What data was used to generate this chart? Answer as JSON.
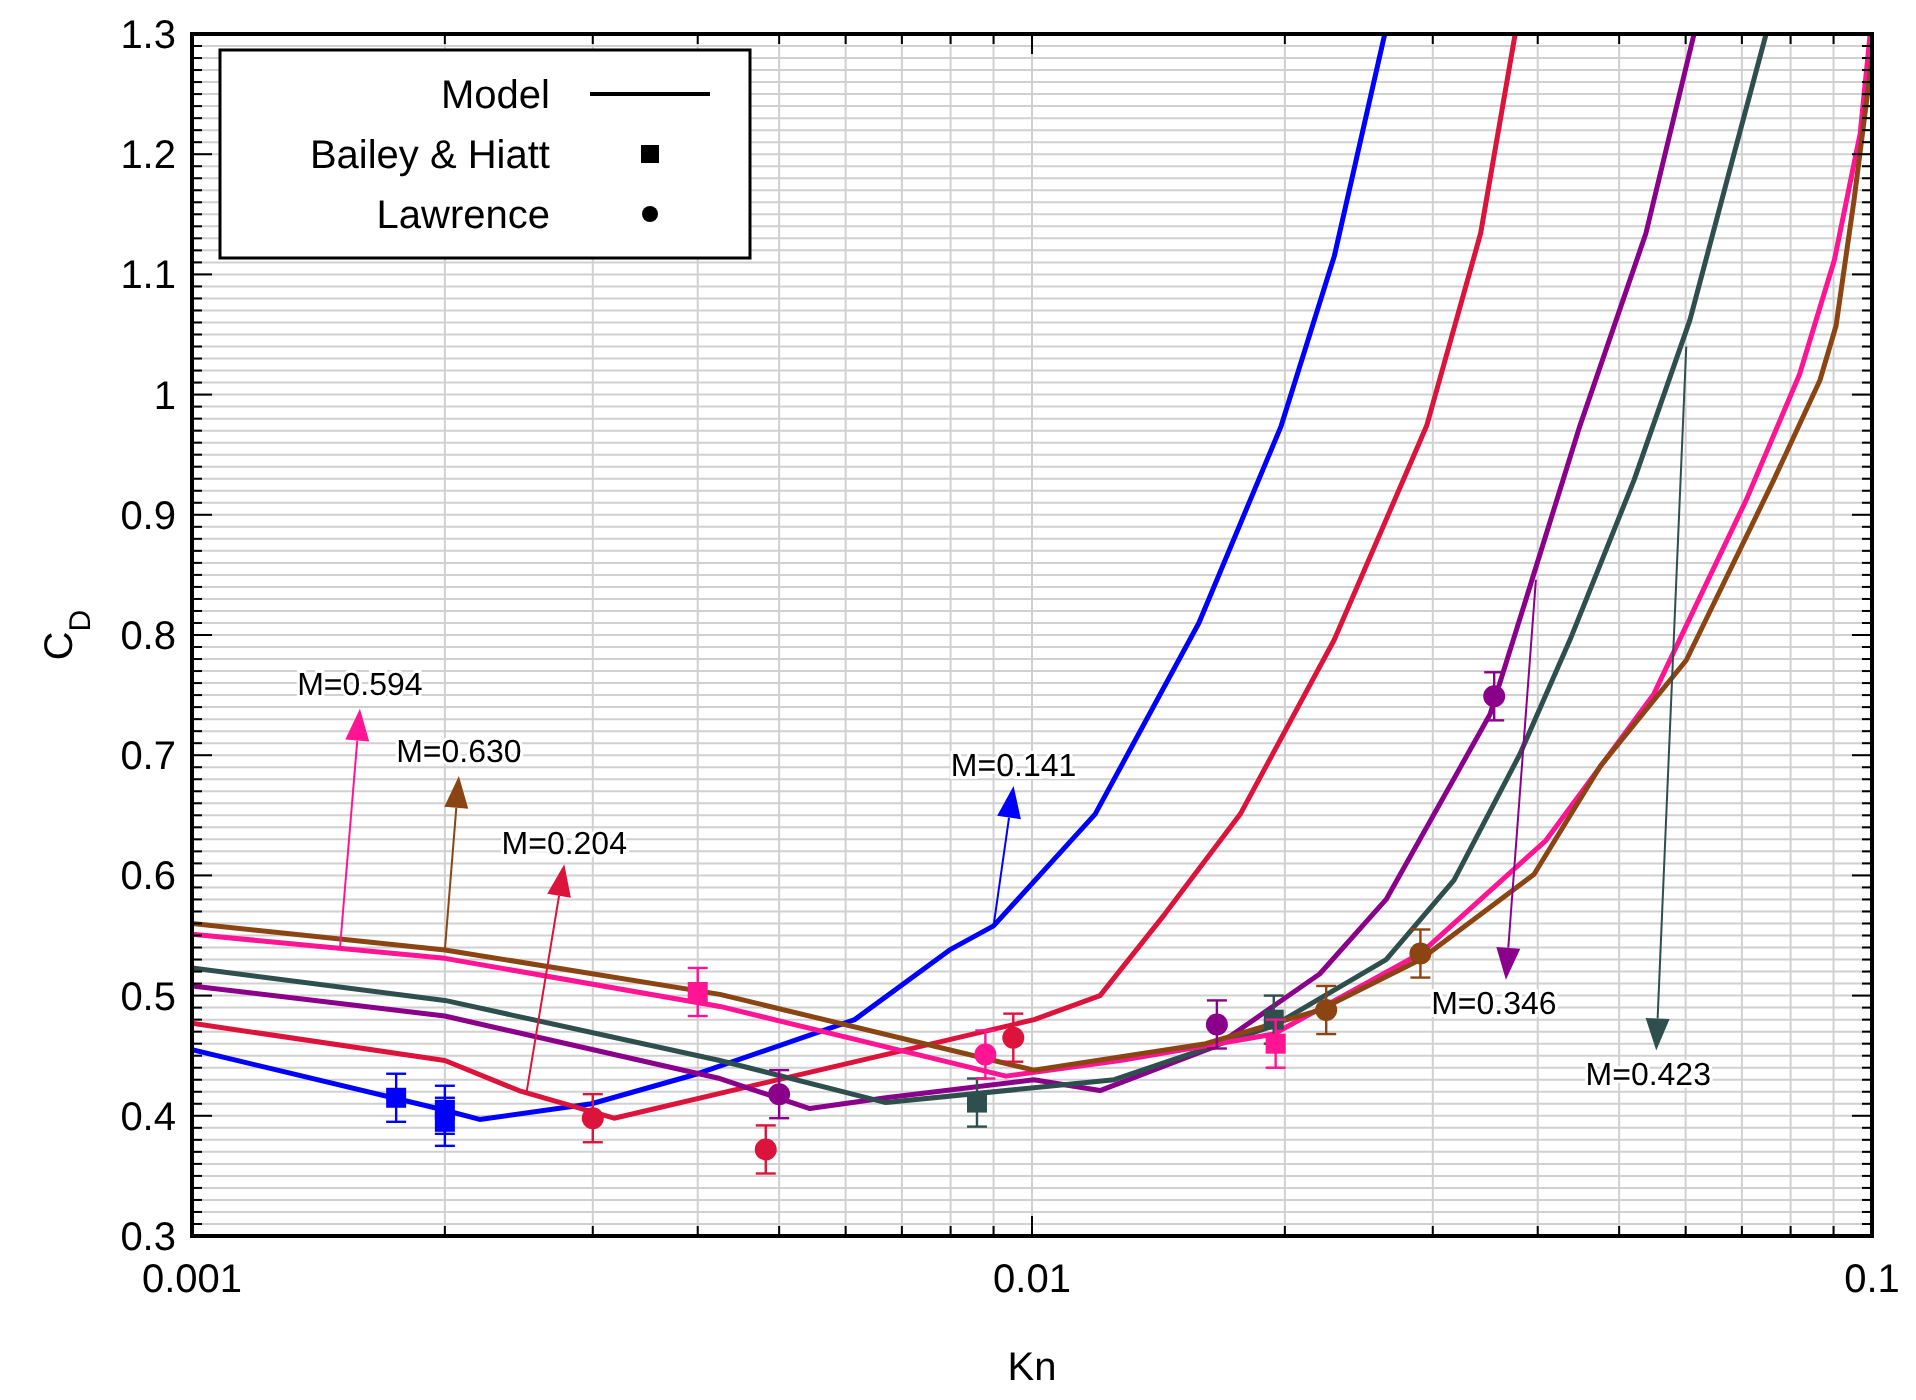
{
  "chart_data": {
    "type": "line",
    "xlabel": "Kn",
    "ylabel": "C$_{D}$",
    "log": "x",
    "xlim": [
      0.001,
      0.1
    ],
    "xticks": [
      0.001,
      0.01,
      0.1
    ],
    "ylim": [
      0.3,
      1.3
    ],
    "yticks": [
      0.3,
      0.4,
      0.5,
      0.6,
      0.7,
      0.8,
      0.9,
      1,
      1.1,
      1.2,
      1.3
    ],
    "grid": true,
    "series": [
      {
        "color": "#0000ff",
        "x": [
          0.001,
          0.00199,
          0.0022,
          0.00299,
          0.004,
          0.00615,
          0.00798,
          0.009,
          0.01189,
          0.0158,
          0.0198,
          0.0229,
          0.0263
        ],
        "values": [
          0.455,
          0.405,
          0.397,
          0.41,
          0.435,
          0.48,
          0.538,
          0.558,
          0.651,
          0.81,
          0.974,
          1.115,
          1.3
        ]
      },
      {
        "color": "#dc143c",
        "x": [
          0.001,
          0.002,
          0.00245,
          0.00318,
          0.00793,
          0.01006,
          0.01205,
          0.0144,
          0.0177,
          0.0229,
          0.0295,
          0.0342,
          0.0376
        ],
        "values": [
          0.477,
          0.446,
          0.421,
          0.398,
          0.463,
          0.48,
          0.5,
          0.568,
          0.651,
          0.796,
          0.974,
          1.134,
          1.3
        ]
      },
      {
        "color": "#8b008b",
        "x": [
          0.001,
          0.002,
          0.00425,
          0.00544,
          0.0067,
          0.01005,
          0.01205,
          0.01656,
          0.022,
          0.0264,
          0.0351,
          0.0387,
          0.0449,
          0.0538,
          0.0614
        ],
        "values": [
          0.508,
          0.483,
          0.431,
          0.406,
          0.415,
          0.43,
          0.421,
          0.458,
          0.518,
          0.58,
          0.734,
          0.829,
          0.974,
          1.134,
          1.3
        ]
      },
      {
        "color": "#2f4f4f",
        "x": [
          0.001,
          0.002,
          0.00425,
          0.0067,
          0.01253,
          0.0194,
          0.0264,
          0.0318,
          0.0381,
          0.0437,
          0.0521,
          0.0607,
          0.0685,
          0.0748
        ],
        "values": [
          0.523,
          0.496,
          0.446,
          0.411,
          0.43,
          0.475,
          0.53,
          0.596,
          0.701,
          0.796,
          0.929,
          1.062,
          1.2,
          1.3
        ]
      },
      {
        "color": "#ff1493",
        "x": [
          0.001,
          0.002,
          0.00425,
          0.00931,
          0.01273,
          0.0194,
          0.029,
          0.0409,
          0.055,
          0.059,
          0.0708,
          0.082,
          0.0902,
          0.0968,
          0.0995
        ],
        "values": [
          0.551,
          0.531,
          0.491,
          0.433,
          0.446,
          0.468,
          0.535,
          0.629,
          0.751,
          0.796,
          0.912,
          1.017,
          1.112,
          1.217,
          1.3
        ]
      },
      {
        "color": "#8b4513",
        "x": [
          0.001,
          0.002,
          0.00425,
          0.01005,
          0.0161,
          0.022,
          0.029,
          0.0396,
          0.0475,
          0.0601,
          0.0764,
          0.0867,
          0.0906,
          0.0952,
          0.1
        ],
        "values": [
          0.56,
          0.538,
          0.501,
          0.438,
          0.46,
          0.488,
          0.53,
          0.601,
          0.691,
          0.779,
          0.929,
          1.012,
          1.057,
          1.162,
          1.28
        ]
      },
      {
        "type": "scatter",
        "marker": "square",
        "x": [
          0.00175,
          0.002,
          0.002,
          0.004,
          0.0086,
          0.0194,
          0.0195
        ],
        "values": [
          0.415,
          0.405,
          0.395,
          0.503,
          0.411,
          0.48,
          0.46
        ],
        "colors": [
          "#0000ff",
          "#0000ff",
          "#0000ff",
          "#ff1493",
          "#2f4f4f",
          "#2f4f4f",
          "#ff1493"
        ],
        "errors": [
          0.02,
          0.02,
          0.02,
          0.02,
          0.02,
          0.02,
          0.02
        ]
      },
      {
        "type": "scatter",
        "marker": "circle",
        "x": [
          0.003,
          0.00482,
          0.005,
          0.0088,
          0.0095,
          0.0166,
          0.0224,
          0.029,
          0.0355
        ],
        "values": [
          0.398,
          0.372,
          0.418,
          0.451,
          0.465,
          0.476,
          0.488,
          0.535,
          0.749
        ],
        "colors": [
          "#dc143c",
          "#dc143c",
          "#8b008b",
          "#ff1493",
          "#dc143c",
          "#8b008b",
          "#8b4513",
          "#8b4513",
          "#8b008b"
        ],
        "errors": [
          0.02,
          0.02,
          0.02,
          0.02,
          0.02,
          0.02,
          0.02,
          0.02,
          0.02
        ]
      }
    ],
    "annotations": [
      "Model",
      "Bailey & Hiatt",
      "Lawrence",
      {
        "text": "M=0.594",
        "x": 0.0015,
        "y": 0.539
      },
      {
        "text": "M=0.630",
        "x": 0.002,
        "y": 0.538
      },
      {
        "text": "M=0.204",
        "x": 0.0025,
        "y": 0.418
      },
      {
        "text": "M=0.141",
        "x": 0.009,
        "y": 0.558
      },
      {
        "text": "M=0.346",
        "x": 0.0398,
        "y": 0.846
      },
      {
        "text": "M=0.423",
        "x": 0.0601,
        "y": 1.04
      }
    ]
  }
}
